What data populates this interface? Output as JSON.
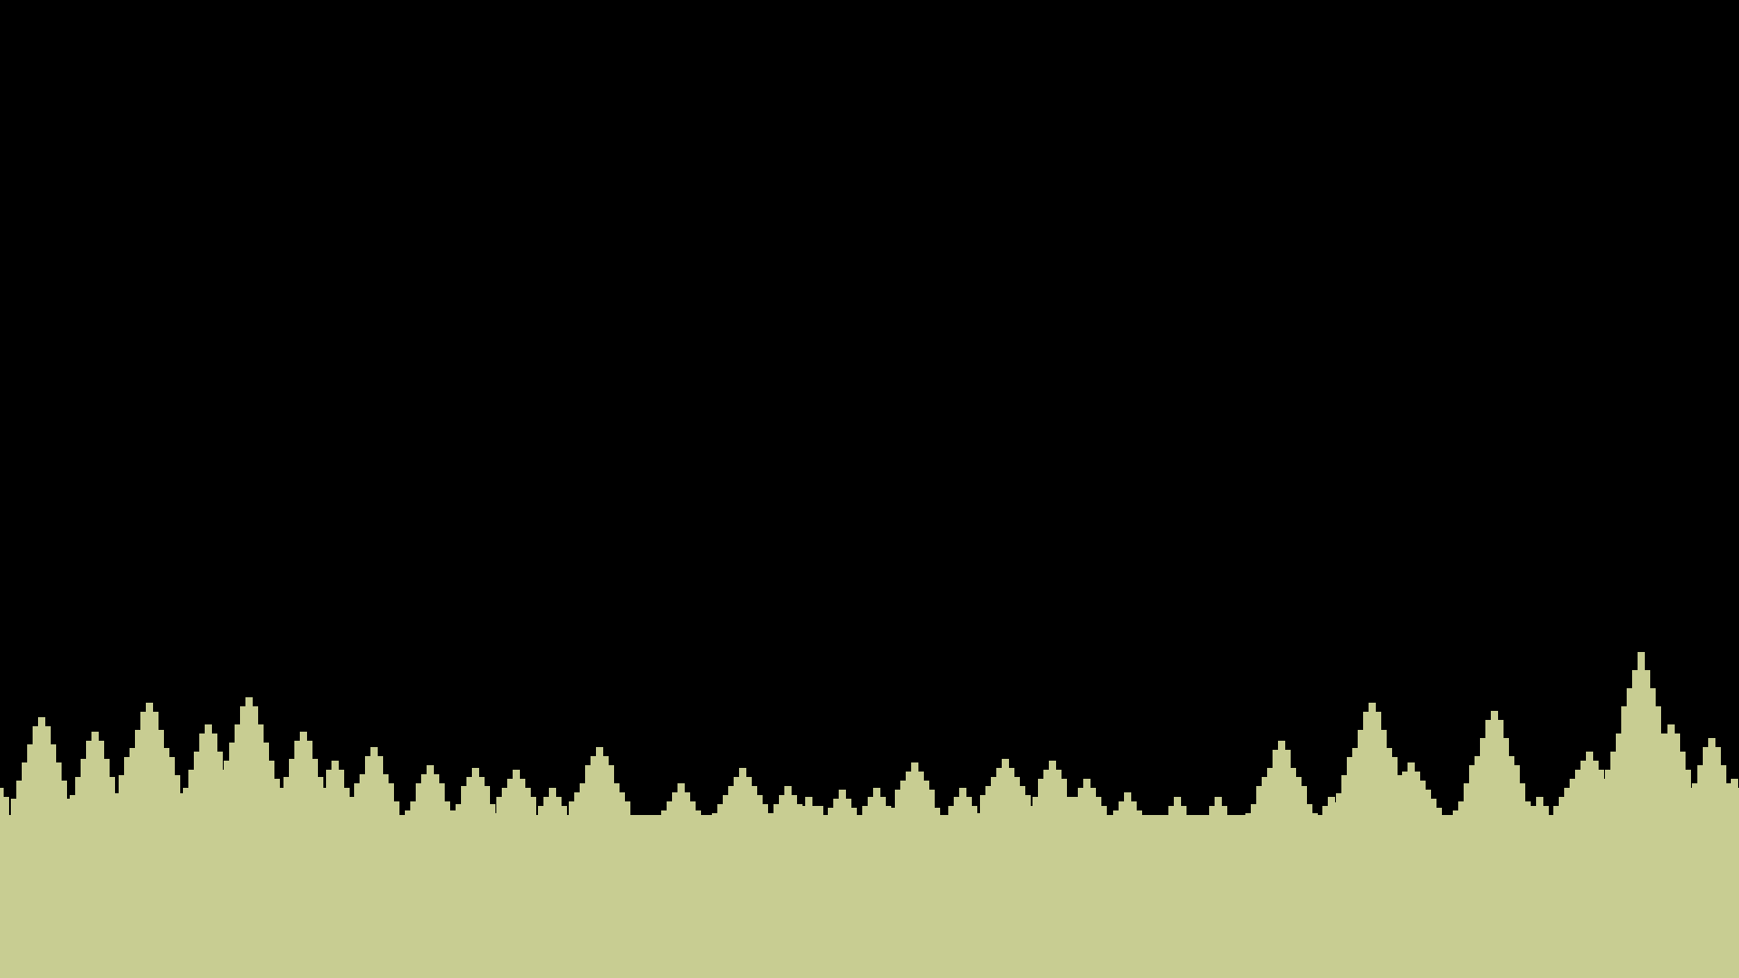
{
  "scene": {
    "kind": "pixel-art forest treeline at night",
    "colors": {
      "sky": "#000000",
      "trees": "#c8cd92",
      "ground": "#c8cd92"
    }
  }
}
